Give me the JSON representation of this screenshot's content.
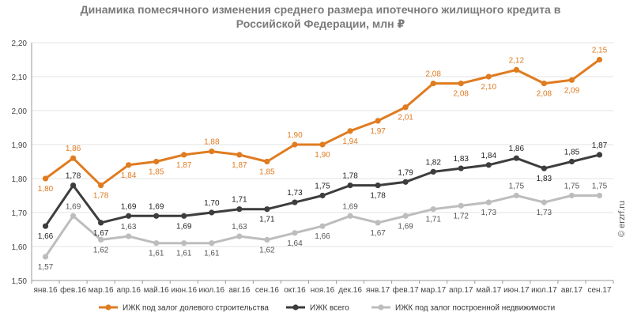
{
  "title": {
    "line1": "Динамика помесячного изменения среднего размера ипотечного жилищного кредита в",
    "line2": "Российской  Федерации, млн ₽"
  },
  "watermark": "© erzrf.ru",
  "chart_data": {
    "type": "line",
    "ylim": [
      1.5,
      2.2
    ],
    "yticks": [
      "1,50",
      "1,60",
      "1,70",
      "1,80",
      "1,90",
      "2,00",
      "2,10",
      "2,20"
    ],
    "yticks_values": [
      1.5,
      1.6,
      1.7,
      1.8,
      1.9,
      2.0,
      2.1,
      2.2
    ],
    "grid": true,
    "legend_position": "bottom",
    "categories": [
      "янв.16",
      "фев.16",
      "мар.16",
      "апр.16",
      "май.16",
      "июн.16",
      "июл.16",
      "авг.16",
      "сен.16",
      "окт.16",
      "ноя.16",
      "дек.16",
      "янв.17",
      "фев.17",
      "мар.17",
      "апр.17",
      "май.17",
      "июн.17",
      "июл.17",
      "авг.17",
      "сен.17"
    ],
    "series": [
      {
        "name": "ИЖК под  залог долевого  строительства",
        "color": "#e07b20",
        "label_color": "#e07b20",
        "values": [
          1.8,
          1.86,
          1.78,
          1.84,
          1.85,
          1.87,
          1.88,
          1.87,
          1.85,
          1.9,
          1.9,
          1.94,
          1.97,
          2.01,
          2.08,
          2.08,
          2.1,
          2.12,
          2.08,
          2.09,
          2.15
        ],
        "labels": [
          "1,80",
          "1,86",
          "1,78",
          "1,84",
          "1,85",
          "1,87",
          "1,88",
          "1,87",
          "1,85",
          "1,90",
          "1,90",
          "1,94",
          "1,97",
          "2,01",
          "2,08",
          "2,08",
          "2,10",
          "2,12",
          "2,08",
          "2,09",
          "2,15"
        ]
      },
      {
        "name": "ИЖК всего",
        "color": "#3d3d3d",
        "label_color": "#222222",
        "values": [
          1.66,
          1.78,
          1.67,
          1.69,
          1.69,
          1.69,
          1.7,
          1.71,
          1.71,
          1.73,
          1.75,
          1.78,
          1.78,
          1.79,
          1.82,
          1.83,
          1.84,
          1.86,
          1.83,
          1.85,
          1.87
        ],
        "labels": [
          "1,66",
          "1,78",
          "1,67",
          "1,69",
          "1,69",
          "1,69",
          "1,70",
          "1,71",
          "1,71",
          "1,73",
          "1,75",
          "1,78",
          "1,78",
          "1,79",
          "1,82",
          "1,83",
          "1,84",
          "1,86",
          "1,83",
          "1,85",
          "1,87"
        ]
      },
      {
        "name": "ИЖК под  залог построенной  недвижимости",
        "color": "#bdbdbd",
        "label_color": "#555555",
        "values": [
          1.57,
          1.69,
          1.62,
          1.63,
          1.61,
          1.61,
          1.61,
          1.63,
          1.62,
          1.64,
          1.66,
          1.69,
          1.67,
          1.69,
          1.71,
          1.72,
          1.73,
          1.75,
          1.73,
          1.75,
          1.75
        ],
        "labels": [
          "1,57",
          "1,69",
          "1,62",
          "1,63",
          "1,61",
          "1,61",
          "1,61",
          "1,63",
          "1,62",
          "1,64",
          "1,66",
          "1,69",
          "1,67",
          "1,69",
          "1,71",
          "1,72",
          "1,73",
          "1,75",
          "1,73",
          "1,75",
          "1,75"
        ]
      }
    ]
  }
}
